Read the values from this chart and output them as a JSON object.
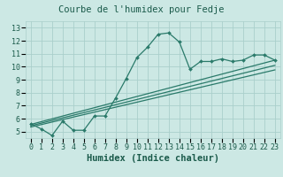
{
  "title": "Courbe de l'humidex pour Fedje",
  "xlabel": "Humidex (Indice chaleur)",
  "bg_color": "#cce8e4",
  "line_color": "#2a7a6a",
  "grid_color": "#aacfcb",
  "xlim": [
    -0.5,
    23.5
  ],
  "ylim": [
    4.5,
    13.5
  ],
  "xticks": [
    0,
    1,
    2,
    3,
    4,
    5,
    6,
    7,
    8,
    9,
    10,
    11,
    12,
    13,
    14,
    15,
    16,
    17,
    18,
    19,
    20,
    21,
    22,
    23
  ],
  "yticks": [
    5,
    6,
    7,
    8,
    9,
    10,
    11,
    12,
    13
  ],
  "curve1_x": [
    0,
    1,
    2,
    3,
    4,
    5,
    6,
    7,
    8,
    9,
    10,
    11,
    12,
    13,
    14,
    15,
    16,
    17,
    18,
    19,
    20,
    21,
    22,
    23
  ],
  "curve1_y": [
    5.6,
    5.2,
    4.7,
    5.8,
    5.1,
    5.1,
    6.2,
    6.2,
    7.6,
    9.1,
    10.7,
    11.5,
    12.5,
    12.6,
    11.9,
    9.8,
    10.4,
    10.4,
    10.6,
    10.4,
    10.5,
    10.9,
    10.9,
    10.5
  ],
  "curve2_x": [
    0,
    23
  ],
  "curve2_y": [
    5.55,
    10.5
  ],
  "curve3_x": [
    0,
    23
  ],
  "curve3_y": [
    5.45,
    10.1
  ],
  "curve4_x": [
    0,
    23
  ],
  "curve4_y": [
    5.35,
    9.75
  ],
  "title_fontsize": 7.5,
  "tick_fontsize": 6,
  "xlabel_fontsize": 7.5
}
